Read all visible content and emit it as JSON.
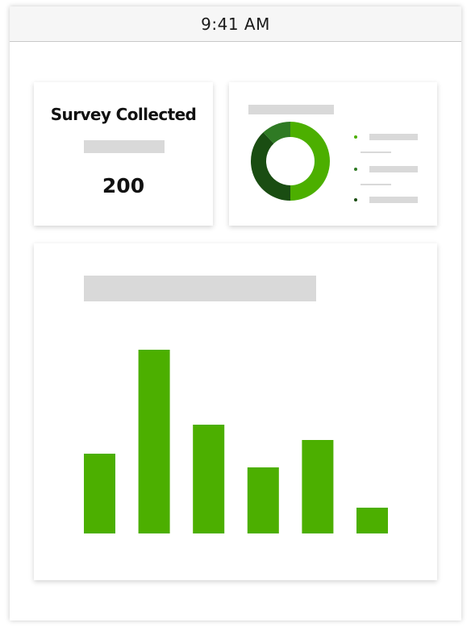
{
  "status_bar": {
    "time": "9:41 AM"
  },
  "survey_card": {
    "title": "Survey Collected",
    "value": "200"
  },
  "donut_card": {
    "segments": [
      {
        "value": 50,
        "color": "#4caf00"
      },
      {
        "value": 38,
        "color": "#1a4d12"
      },
      {
        "value": 12,
        "color": "#2f7a24"
      }
    ],
    "legend_colors": [
      "#4caf00",
      "#2f7a24",
      "#1a4d12"
    ]
  },
  "chart_data": {
    "type": "bar",
    "values": [
      99,
      228,
      135,
      82,
      116,
      32
    ],
    "color": "#4caf00"
  },
  "colors": {
    "accent": "#4caf00",
    "placeholder": "#d9d9d9"
  }
}
